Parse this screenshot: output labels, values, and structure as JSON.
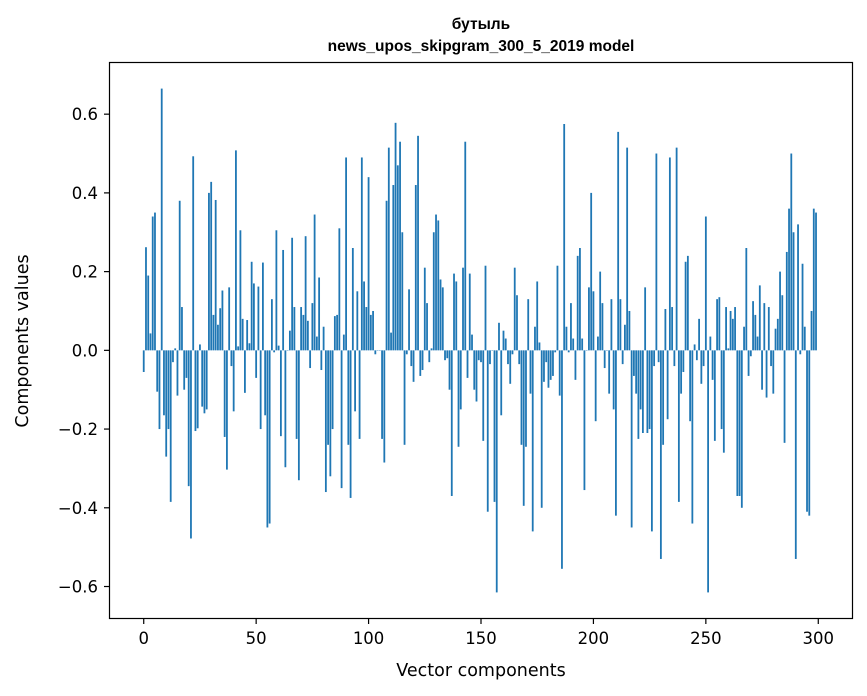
{
  "chart_data": {
    "type": "bar",
    "title": "бутыль",
    "subtitle": "news_upos_skipgram_300_5_2019 model",
    "xlabel": "Vector components",
    "ylabel": "Components values",
    "xlim": [
      -15,
      315
    ],
    "ylim": [
      -0.68,
      0.73
    ],
    "xticks": [
      0,
      50,
      100,
      150,
      200,
      250,
      300
    ],
    "yticks": [
      -0.6,
      -0.4,
      -0.2,
      0.0,
      0.2,
      0.4,
      0.6
    ],
    "ytick_labels": [
      "−0.6",
      "−0.4",
      "−0.2",
      "0.0",
      "0.2",
      "0.4",
      "0.6"
    ],
    "bar_color": "#1f77b4",
    "grid": false,
    "values": [
      -0.055,
      0.262,
      0.19,
      0.043,
      0.34,
      0.35,
      -0.105,
      -0.2,
      0.665,
      -0.165,
      -0.27,
      -0.2,
      -0.385,
      -0.03,
      0.005,
      -0.115,
      0.38,
      0.11,
      -0.1,
      -0.07,
      -0.345,
      -0.478,
      0.493,
      -0.205,
      -0.198,
      0.015,
      -0.143,
      -0.16,
      -0.15,
      0.4,
      0.428,
      0.09,
      0.382,
      0.065,
      0.107,
      0.152,
      -0.22,
      -0.303,
      0.16,
      -0.04,
      -0.155,
      0.508,
      0.01,
      0.305,
      0.08,
      -0.108,
      0.077,
      0.018,
      0.225,
      0.17,
      -0.07,
      0.162,
      -0.2,
      0.223,
      -0.165,
      -0.45,
      -0.44,
      0.13,
      -0.005,
      0.305,
      0.012,
      -0.218,
      0.255,
      -0.297,
      0.0,
      0.05,
      0.286,
      0.11,
      -0.225,
      -0.33,
      0.11,
      0.09,
      0.29,
      0.075,
      -0.045,
      0.12,
      0.345,
      0.035,
      0.185,
      -0.05,
      0.06,
      -0.36,
      -0.24,
      -0.32,
      -0.2,
      0.087,
      0.09,
      0.31,
      -0.35,
      0.04,
      0.49,
      -0.24,
      -0.375,
      0.26,
      -0.155,
      0.15,
      -0.225,
      0.49,
      0.175,
      0.11,
      0.44,
      0.09,
      0.1,
      -0.01,
      0.0,
      0.0,
      -0.225,
      -0.285,
      0.38,
      0.515,
      0.045,
      0.42,
      0.578,
      0.47,
      0.53,
      0.3,
      -0.24,
      -0.01,
      0.155,
      -0.04,
      -0.08,
      0.42,
      0.545,
      -0.065,
      -0.05,
      0.21,
      0.12,
      -0.03,
      0.005,
      0.3,
      0.345,
      0.33,
      0.18,
      0.16,
      -0.025,
      -0.02,
      -0.1,
      -0.37,
      0.195,
      0.175,
      -0.245,
      -0.15,
      0.21,
      0.53,
      -0.07,
      0.195,
      0.04,
      -0.1,
      -0.13,
      -0.025,
      -0.03,
      -0.23,
      0.215,
      -0.41,
      -0.035,
      0.0,
      -0.385,
      -0.615,
      0.07,
      -0.165,
      0.05,
      0.03,
      -0.035,
      -0.085,
      -0.01,
      0.21,
      0.14,
      -0.035,
      -0.24,
      -0.395,
      -0.245,
      0.13,
      -0.11,
      -0.46,
      0.06,
      0.175,
      0.02,
      -0.4,
      -0.08,
      -0.03,
      -0.095,
      -0.075,
      -0.065,
      -0.005,
      0.215,
      -0.115,
      -0.555,
      0.575,
      0.06,
      -0.005,
      0.12,
      0.03,
      -0.075,
      0.24,
      0.26,
      0.03,
      -0.355,
      0.0,
      0.16,
      0.4,
      0.15,
      -0.18,
      0.035,
      0.2,
      0.12,
      -0.045,
      0.0,
      -0.11,
      0.13,
      -0.15,
      -0.42,
      0.555,
      0.13,
      -0.035,
      0.065,
      0.515,
      0.1,
      -0.45,
      -0.065,
      -0.11,
      -0.225,
      -0.15,
      -0.21,
      0.16,
      -0.21,
      -0.2,
      -0.46,
      -0.04,
      0.5,
      -0.03,
      -0.53,
      -0.24,
      0.105,
      -0.175,
      0.49,
      0.11,
      -0.04,
      0.515,
      -0.385,
      -0.11,
      -0.055,
      0.225,
      0.24,
      -0.18,
      -0.44,
      0.015,
      -0.025,
      0.08,
      -0.085,
      -0.04,
      0.34,
      -0.615,
      0.035,
      -0.075,
      -0.23,
      0.13,
      0.135,
      -0.2,
      -0.26,
      0.11,
      0.005,
      0.1,
      0.08,
      0.11,
      -0.37,
      -0.37,
      -0.4,
      0.06,
      0.26,
      -0.065,
      -0.015,
      0.125,
      0.09,
      0.035,
      0.165,
      -0.1,
      0.12,
      -0.12,
      0.11,
      -0.04,
      -0.11,
      0.055,
      0.08,
      0.2,
      0.14,
      -0.235,
      0.25,
      0.36,
      0.5,
      0.3,
      -0.53,
      0.32,
      -0.01,
      0.22,
      0.06,
      -0.41,
      -0.42,
      0.1,
      0.36,
      0.35
    ]
  }
}
